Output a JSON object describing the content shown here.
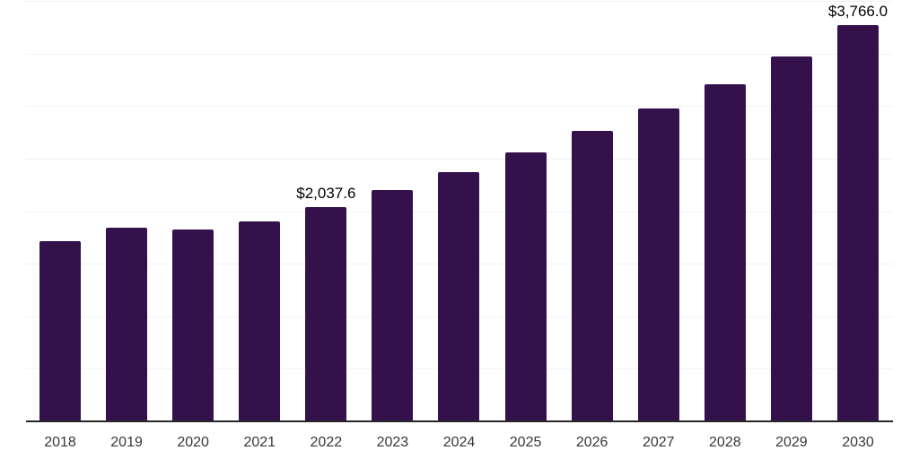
{
  "chart_data": {
    "type": "bar",
    "categories": [
      "2018",
      "2019",
      "2020",
      "2021",
      "2022",
      "2023",
      "2024",
      "2025",
      "2026",
      "2027",
      "2028",
      "2029",
      "2030"
    ],
    "values": [
      1713,
      1841,
      1824,
      1905,
      2037.6,
      2198,
      2369,
      2556,
      2761,
      2975,
      3205,
      3469,
      3766
    ],
    "annotations": [
      {
        "category": "2022",
        "text": "$2,037.6",
        "value": 2037.6
      },
      {
        "category": "2030",
        "text": "$3,766.0",
        "value": 3766.0
      }
    ],
    "ylim": [
      0,
      4000
    ],
    "grid_interval": 500,
    "grid": "horizontal",
    "legend": "none",
    "colors": {
      "bar": "#35114B",
      "grid": "#F2F2F2",
      "axis": "#262626",
      "data_label": "#000000",
      "tick_label": "#383838",
      "background": "#FFFFFF"
    }
  }
}
